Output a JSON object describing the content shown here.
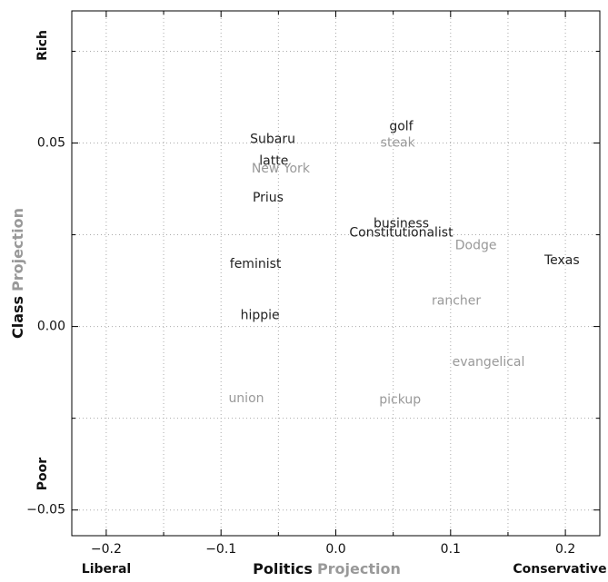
{
  "chart_data": {
    "type": "scatter",
    "xlabel": [
      {
        "text": "Politics",
        "color": "#111111"
      },
      {
        "text": "Projection",
        "color": "#999999"
      }
    ],
    "ylabel": [
      {
        "text": "Class",
        "color": "#111111"
      },
      {
        "text": "Projection",
        "color": "#999999"
      }
    ],
    "x_end_labels": [
      "Liberal",
      "Conservative"
    ],
    "y_end_labels": [
      "Poor",
      "Rich"
    ],
    "xlim": [
      -0.23,
      0.23
    ],
    "ylim": [
      -0.057,
      0.086
    ],
    "xticks": [
      {
        "value": -0.2,
        "label": "−0.2"
      },
      {
        "value": -0.1,
        "label": "−0.1"
      },
      {
        "value": 0,
        "label": "0.0"
      },
      {
        "value": 0.1,
        "label": "0.1"
      },
      {
        "value": 0.2,
        "label": "0.2"
      }
    ],
    "yticks": [
      {
        "value": -0.05,
        "label": "−0.05"
      },
      {
        "value": 0,
        "label": "0.00"
      },
      {
        "value": 0.05,
        "label": "0.05"
      }
    ],
    "xminor": [
      -0.15,
      -0.05,
      0.05,
      0.15
    ],
    "yminor": [
      -0.025,
      0.025,
      0.075
    ],
    "grid": true,
    "points": [
      {
        "label": "golf",
        "x": 0.057,
        "y": 0.0545,
        "color": "#222222"
      },
      {
        "label": "steak",
        "x": 0.054,
        "y": 0.05,
        "color": "#999999"
      },
      {
        "label": "Subaru",
        "x": -0.055,
        "y": 0.051,
        "color": "#222222"
      },
      {
        "label": "latte",
        "x": -0.054,
        "y": 0.045,
        "color": "#222222"
      },
      {
        "label": "New York",
        "x": -0.048,
        "y": 0.043,
        "color": "#999999"
      },
      {
        "label": "Prius",
        "x": -0.059,
        "y": 0.035,
        "color": "#222222"
      },
      {
        "label": "business",
        "x": 0.057,
        "y": 0.028,
        "color": "#222222"
      },
      {
        "label": "Constitutionalist",
        "x": 0.057,
        "y": 0.0255,
        "color": "#222222"
      },
      {
        "label": "Dodge",
        "x": 0.122,
        "y": 0.022,
        "color": "#999999"
      },
      {
        "label": "Texas",
        "x": 0.197,
        "y": 0.018,
        "color": "#222222"
      },
      {
        "label": "feminist",
        "x": -0.07,
        "y": 0.017,
        "color": "#222222"
      },
      {
        "label": "rancher",
        "x": 0.105,
        "y": 0.007,
        "color": "#999999"
      },
      {
        "label": "hippie",
        "x": -0.066,
        "y": 0.003,
        "color": "#222222"
      },
      {
        "label": "evangelical",
        "x": 0.133,
        "y": -0.0097,
        "color": "#999999"
      },
      {
        "label": "union",
        "x": -0.078,
        "y": -0.0196,
        "color": "#999999"
      },
      {
        "label": "pickup",
        "x": 0.056,
        "y": -0.02,
        "color": "#999999"
      }
    ]
  }
}
